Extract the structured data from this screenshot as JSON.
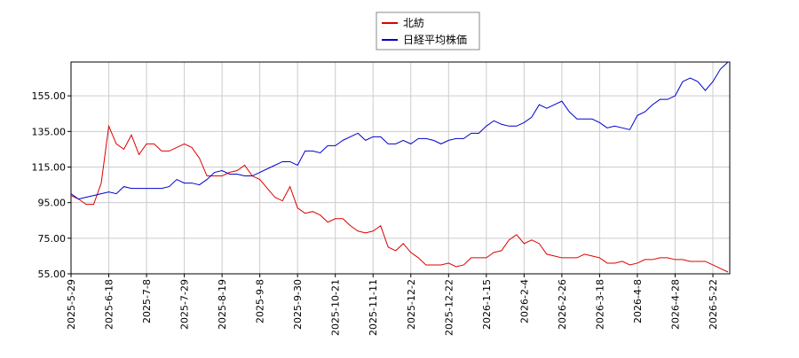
{
  "chart_data": {
    "type": "line",
    "categories": [
      "2025-5-29",
      null,
      null,
      null,
      null,
      "2025-6-18",
      null,
      null,
      null,
      null,
      "2025-7-8",
      null,
      null,
      null,
      null,
      "2025-7-29",
      null,
      null,
      null,
      null,
      "2025-8-19",
      null,
      null,
      null,
      null,
      "2025-9-8",
      null,
      null,
      null,
      null,
      "2025-9-30",
      null,
      null,
      null,
      null,
      "2025-10-21",
      null,
      null,
      null,
      null,
      "2025-11-11",
      null,
      null,
      null,
      null,
      "2025-12-2",
      null,
      null,
      null,
      null,
      "2025-12-22",
      null,
      null,
      null,
      null,
      "2026-1-15",
      null,
      null,
      null,
      null,
      "2026-2-4",
      null,
      null,
      null,
      null,
      "2026-2-26",
      null,
      null,
      null,
      null,
      "2026-3-18",
      null,
      null,
      null,
      null,
      "2026-4-8",
      null,
      null,
      null,
      null,
      "2026-4-28",
      null,
      null,
      null,
      null,
      "2026-5-22",
      null,
      null
    ],
    "series": [
      {
        "name": "北紡",
        "color": "#dd0000",
        "values": [
          99,
          97,
          94,
          94,
          106,
          138,
          128,
          125,
          133,
          122,
          128,
          128,
          124,
          124,
          126,
          128,
          126,
          120,
          110,
          110,
          110,
          112,
          113,
          116,
          110,
          108,
          103,
          98,
          96,
          104,
          92,
          89,
          90,
          88,
          84,
          86,
          86,
          82,
          79,
          78,
          79,
          82,
          70,
          68,
          72,
          67,
          64,
          60,
          60,
          60,
          61,
          59,
          60,
          64,
          64,
          64,
          67,
          68,
          74,
          77,
          72,
          74,
          72,
          66,
          65,
          64,
          64,
          64,
          66,
          65,
          64,
          61,
          61,
          62,
          60,
          61,
          63,
          63,
          64,
          64,
          63,
          63,
          62,
          62,
          62,
          60,
          58,
          56
        ]
      },
      {
        "name": "日経平均株価",
        "color": "#0000cc",
        "values": [
          100,
          97,
          98,
          99,
          100,
          101,
          100,
          104,
          103,
          103,
          103,
          103,
          103,
          104,
          108,
          106,
          106,
          105,
          108,
          112,
          113,
          111,
          111,
          110,
          110,
          112,
          114,
          116,
          118,
          118,
          116,
          124,
          124,
          123,
          127,
          127,
          130,
          132,
          134,
          130,
          132,
          132,
          128,
          128,
          130,
          128,
          131,
          131,
          130,
          128,
          130,
          131,
          131,
          134,
          134,
          138,
          141,
          139,
          138,
          138,
          140,
          143,
          150,
          148,
          150,
          152,
          146,
          142,
          142,
          142,
          140,
          137,
          138,
          137,
          136,
          144,
          146,
          150,
          153,
          153,
          155,
          163,
          165,
          163,
          158,
          163,
          170,
          174
        ]
      }
    ],
    "ylim": [
      55,
      174
    ],
    "yticks": [
      {
        "value": 55,
        "label": "55.00"
      },
      {
        "value": 75,
        "label": "75.00"
      },
      {
        "value": 95,
        "label": "95.00"
      },
      {
        "value": 115,
        "label": "115.00"
      },
      {
        "value": 135,
        "label": "135.00"
      },
      {
        "value": 155,
        "label": "155.00"
      }
    ],
    "grid": true,
    "legend": "top"
  }
}
